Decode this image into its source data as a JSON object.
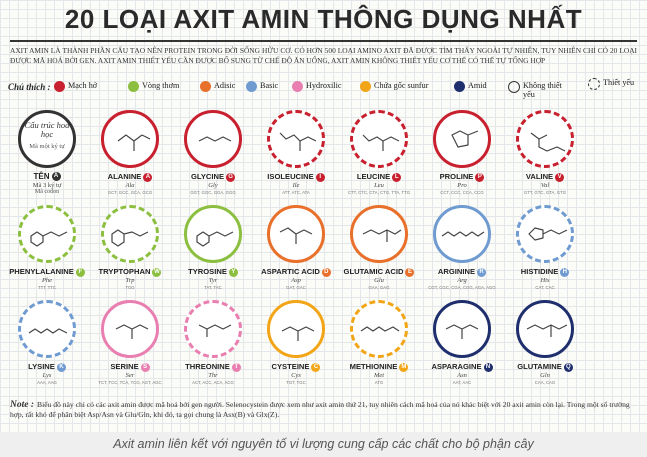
{
  "title": "20 LOẠI AXIT AMIN THÔNG DỤNG NHẤT",
  "intro": "AXIT AMIN LÀ THÀNH PHẦN CẤU TẠO NÊN PROTEIN TRONG ĐỜI SỐNG HỮU CƠ. CÓ HƠN 500 LOẠI AMINO AXIT ĐÃ ĐƯỢC TÌM THẤY NGOÀI TỰ NHIÊN, TUY NHIÊN CHỈ CÓ 20 LOẠI ĐƯỢC MÃ HOÁ BỞI GEN. AXIT AMIN THIẾT YẾU CẦN ĐƯỢC BỔ SUNG TỪ CHẾ ĐỘ ĂN UỐNG, AXIT AMIN KHÔNG THIẾT YẾU CƠ THỂ CÓ THỂ TỰ TỔNG HỢP",
  "legend": {
    "label": "Chú thích :",
    "items": [
      {
        "label": "Mạch hở",
        "color": "#c8202e"
      },
      {
        "label": "Vòng thơm",
        "color": "#8cbf3f"
      },
      {
        "label": "Adisic",
        "color": "#e8702a"
      },
      {
        "label": "Basic",
        "color": "#6f9bd1"
      },
      {
        "label": "Hydroxilic",
        "color": "#e97fb0"
      },
      {
        "label": "Chứa gốc sunfur",
        "color": "#f2a516"
      },
      {
        "label": "Amid",
        "color": "#1f2f6e"
      }
    ],
    "nonessential": "Không thiết yếu",
    "essential": "Thiết yếu"
  },
  "key": {
    "line1": "Cấu trúc hoá học",
    "line2": "Mã một ký tự",
    "name": "TÊN",
    "badge": "A",
    "abbr": "Mã 3 ký tự",
    "codon": "Mã codon"
  },
  "amino_acids": [
    {
      "name": "ALANINE",
      "letter": "A",
      "abbr": "Ala",
      "codon": "GCT, GCC, GCA, GCG",
      "color": "#c8202e",
      "essential": false
    },
    {
      "name": "GLYCINE",
      "letter": "G",
      "abbr": "Gly",
      "codon": "GGT, GGC, GGA, GGG",
      "color": "#c8202e",
      "essential": false
    },
    {
      "name": "ISOLEUCINE",
      "letter": "I",
      "abbr": "Ile",
      "codon": "ATT, ATC, ATA",
      "color": "#c8202e",
      "essential": true
    },
    {
      "name": "LEUCINE",
      "letter": "L",
      "abbr": "Leu",
      "codon": "CTT, CTC, CTA, CTG, TTA, TTG",
      "color": "#c8202e",
      "essential": true
    },
    {
      "name": "PROLINE",
      "letter": "P",
      "abbr": "Pro",
      "codon": "CCT, CCC, CCA, CCG",
      "color": "#c8202e",
      "essential": false
    },
    {
      "name": "VALINE",
      "letter": "V",
      "abbr": "Val",
      "codon": "GTT, GTC, GTA, GTG",
      "color": "#c8202e",
      "essential": true
    },
    {
      "name": "PHENYLALANINE",
      "letter": "F",
      "abbr": "Phe",
      "codon": "TTT, TTC",
      "color": "#8cbf3f",
      "essential": true
    },
    {
      "name": "TRYPTOPHAN",
      "letter": "W",
      "abbr": "Trp",
      "codon": "TGG",
      "color": "#8cbf3f",
      "essential": true
    },
    {
      "name": "TYROSINE",
      "letter": "Y",
      "abbr": "Tyr",
      "codon": "TAT, TAC",
      "color": "#8cbf3f",
      "essential": false
    },
    {
      "name": "ASPARTIC ACID",
      "letter": "D",
      "abbr": "Asp",
      "codon": "GAT, GAC",
      "color": "#e8702a",
      "essential": false
    },
    {
      "name": "GLUTAMIC ACID",
      "letter": "E",
      "abbr": "Glu",
      "codon": "GAA, GAG",
      "color": "#e8702a",
      "essential": false
    },
    {
      "name": "ARGININE",
      "letter": "R",
      "abbr": "Arg",
      "codon": "CGT, CGC, CGA, CGG, AGA, AGG",
      "color": "#6f9bd1",
      "essential": false
    },
    {
      "name": "HISTIDINE",
      "letter": "H",
      "abbr": "His",
      "codon": "CAT, CAC",
      "color": "#6f9bd1",
      "essential": true
    },
    {
      "name": "LYSINE",
      "letter": "K",
      "abbr": "Lys",
      "codon": "AAA, AAG",
      "color": "#6f9bd1",
      "essential": true
    },
    {
      "name": "SERINE",
      "letter": "S",
      "abbr": "Ser",
      "codon": "TCT, TCC, TCA, TCG, AGT, AGC",
      "color": "#e97fb0",
      "essential": false
    },
    {
      "name": "THREONINE",
      "letter": "T",
      "abbr": "Thr",
      "codon": "ACT, ACC, ACA, ACG",
      "color": "#e97fb0",
      "essential": true
    },
    {
      "name": "CYSTEINE",
      "letter": "C",
      "abbr": "Cys",
      "codon": "TGT, TGC",
      "color": "#f2a516",
      "essential": false
    },
    {
      "name": "METHIONINE",
      "letter": "M",
      "abbr": "Met",
      "codon": "ATG",
      "color": "#f2a516",
      "essential": true
    },
    {
      "name": "ASPARAGINE",
      "letter": "N",
      "abbr": "Asn",
      "codon": "AAT, AAC",
      "color": "#1f2f6e",
      "essential": false
    },
    {
      "name": "GLUTAMINE",
      "letter": "Q",
      "abbr": "Gln",
      "codon": "CAA, CAG",
      "color": "#1f2f6e",
      "essential": false
    }
  ],
  "note": {
    "label": "Note :",
    "text": "Biểu đồ này chỉ có các axit amin được mã hoá bởi gen người. Selenocystein được xem như axit amin thứ 21, tuy nhiên cách mã hoá của nó khác biệt với 20 axit amin còn lại. Trong một số trường hợp, rất khó để phân biệt Asp/Asn và Glu/Gln, khi đó, ta gọi chung là Asx(B) và Glx(Z)."
  },
  "caption": "Axit amin liên kết với nguyên tố vi lượng cung cấp các chất cho bộ phận cây"
}
